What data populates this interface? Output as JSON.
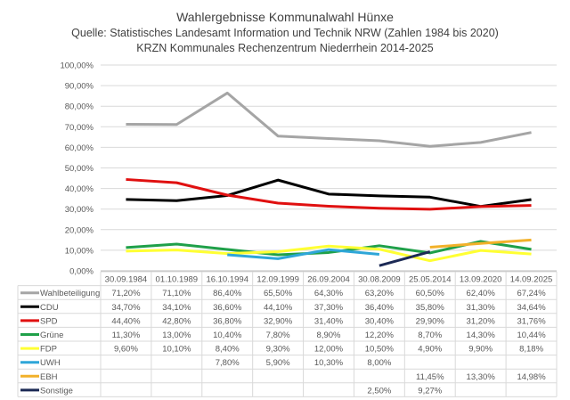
{
  "chart_data": {
    "type": "line",
    "title": "Wahlergebnisse Kommunalwahl Hünxe",
    "subtitle": [
      "Quelle: Statistisches Landesamt Information und Technik NRW (Zahlen 1984 bis 2020)",
      "KRZN Kommunales Rechenzentrum Niederrhein 2014-2025"
    ],
    "categories": [
      "30.09.1984",
      "01.10.1989",
      "16.10.1994",
      "12.09.1999",
      "26.09.2004",
      "30.08.2009",
      "25.05.2014",
      "13.09.2020",
      "14.09.2025"
    ],
    "ylim": [
      0,
      100
    ],
    "yticks": [
      "0,00%",
      "10,00%",
      "20,00%",
      "30,00%",
      "40,00%",
      "50,00%",
      "60,00%",
      "70,00%",
      "80,00%",
      "90,00%",
      "100,00%"
    ],
    "grid": true,
    "legend": "data-table",
    "series": [
      {
        "name": "Wahlbeteiligung",
        "color": "#a5a5a5",
        "values": [
          71.2,
          71.1,
          86.4,
          65.5,
          64.3,
          63.2,
          60.5,
          62.4,
          67.24
        ],
        "labels": [
          "71,20%",
          "71,10%",
          "86,40%",
          "65,50%",
          "64,30%",
          "63,20%",
          "60,50%",
          "62,40%",
          "67,24%"
        ]
      },
      {
        "name": "CDU",
        "color": "#000000",
        "values": [
          34.7,
          34.1,
          36.6,
          44.1,
          37.3,
          36.4,
          35.8,
          31.3,
          34.64
        ],
        "labels": [
          "34,70%",
          "34,10%",
          "36,60%",
          "44,10%",
          "37,30%",
          "36,40%",
          "35,80%",
          "31,30%",
          "34,64%"
        ]
      },
      {
        "name": "SPD",
        "color": "#e01010",
        "values": [
          44.4,
          42.8,
          36.8,
          32.9,
          31.4,
          30.4,
          29.9,
          31.2,
          31.76
        ],
        "labels": [
          "44,40%",
          "42,80%",
          "36,80%",
          "32,90%",
          "31,40%",
          "30,40%",
          "29,90%",
          "31,20%",
          "31,76%"
        ]
      },
      {
        "name": "Grüne",
        "color": "#1fa049",
        "values": [
          11.3,
          13.0,
          10.4,
          7.8,
          8.9,
          12.2,
          8.7,
          14.3,
          10.44
        ],
        "labels": [
          "11,30%",
          "13,00%",
          "10,40%",
          "7,80%",
          "8,90%",
          "12,20%",
          "8,70%",
          "14,30%",
          "10,44%"
        ]
      },
      {
        "name": "FDP",
        "color": "#ffff33",
        "values": [
          9.6,
          10.1,
          8.4,
          9.3,
          12.0,
          10.5,
          4.9,
          9.9,
          8.18
        ],
        "labels": [
          "9,60%",
          "10,10%",
          "8,40%",
          "9,30%",
          "12,00%",
          "10,50%",
          "4,90%",
          "9,90%",
          "8,18%"
        ]
      },
      {
        "name": "UWH",
        "color": "#2ea6d8",
        "values": [
          null,
          null,
          7.8,
          5.9,
          10.3,
          8.0,
          null,
          null,
          null
        ],
        "labels": [
          "",
          "",
          "7,80%",
          "5,90%",
          "10,30%",
          "8,00%",
          "",
          "",
          ""
        ]
      },
      {
        "name": "EBH",
        "color": "#f2b12a",
        "values": [
          null,
          null,
          null,
          null,
          null,
          null,
          11.45,
          13.3,
          14.98
        ],
        "labels": [
          "",
          "",
          "",
          "",
          "",
          "",
          "11,45%",
          "13,30%",
          "14,98%"
        ]
      },
      {
        "name": "Sonstige",
        "color": "#1c2a55",
        "values": [
          null,
          null,
          null,
          null,
          null,
          2.5,
          9.27,
          null,
          null
        ],
        "labels": [
          "",
          "",
          "",
          "",
          "",
          "2,50%",
          "9,27%",
          "",
          ""
        ]
      }
    ]
  }
}
